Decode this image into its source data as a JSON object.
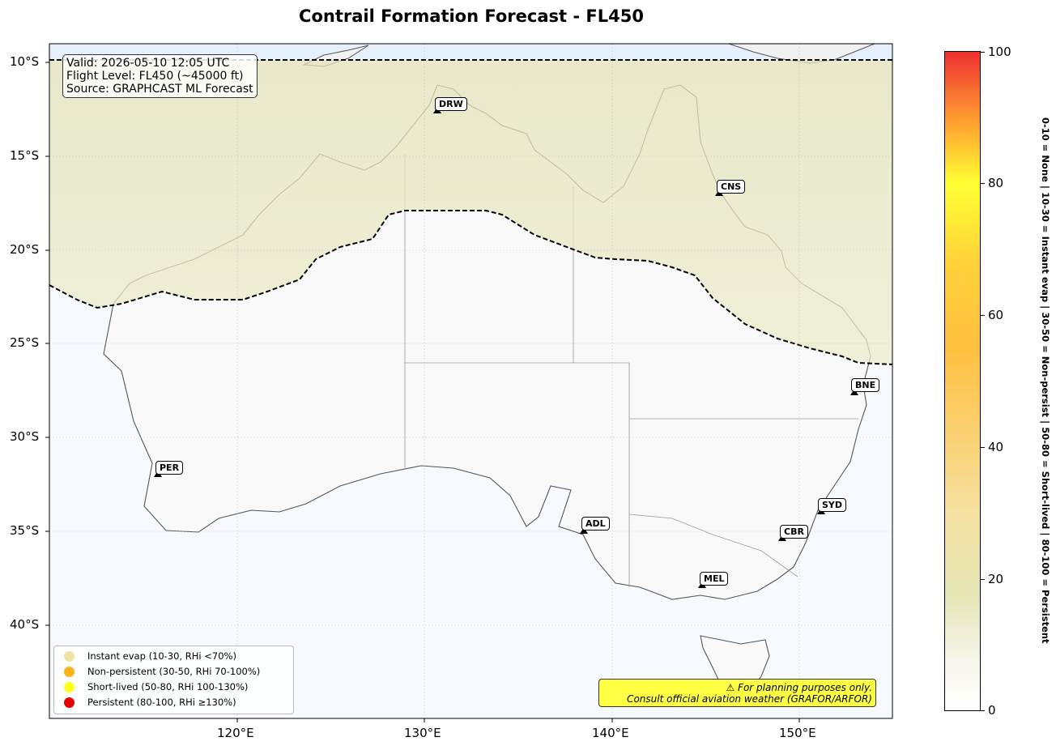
{
  "title": "Contrail Formation Forecast - FL450",
  "info": {
    "valid": "Valid: 2026-05-10 12:05 UTC",
    "flight_level": "Flight Level: FL450 (~45000 ft)",
    "source": "Source: GRAPHCAST ML Forecast"
  },
  "axes": {
    "lat_ticks": [
      "10°S",
      "15°S",
      "20°S",
      "25°S",
      "30°S",
      "35°S",
      "40°S"
    ],
    "lon_ticks": [
      "120°E",
      "130°E",
      "140°E",
      "150°E"
    ],
    "lat_range": [
      -45,
      -9
    ],
    "lon_range": [
      110,
      155
    ]
  },
  "cities": [
    {
      "code": "DRW",
      "lon": 130.8,
      "lat": -12.4
    },
    {
      "code": "CNS",
      "lon": 145.8,
      "lat": -16.9
    },
    {
      "code": "BNE",
      "lon": 153.0,
      "lat": -27.5
    },
    {
      "code": "PER",
      "lon": 115.9,
      "lat": -31.9
    },
    {
      "code": "ADL",
      "lon": 138.6,
      "lat": -34.9
    },
    {
      "code": "SYD",
      "lon": 151.2,
      "lat": -33.9
    },
    {
      "code": "CBR",
      "lon": 149.1,
      "lat": -35.3
    },
    {
      "code": "MEL",
      "lon": 144.9,
      "lat": -37.8
    }
  ],
  "legend": [
    {
      "label": "Instant evap (10-30, RHi <70%)",
      "color": "#f0e2a0"
    },
    {
      "label": "Non-persistent (30-50, RHi 70-100%)",
      "color": "#ffb31a"
    },
    {
      "label": "Short-lived (50-80, RHi 100-130%)",
      "color": "#ffff1a"
    },
    {
      "label": "Persistent (80-100, RHi ≥130%)",
      "color": "#e60000"
    }
  ],
  "warning": {
    "line1": "⚠ For planning purposes only.",
    "line2": "Consult official aviation weather (GRAFOR/ARFOR)"
  },
  "colorbar": {
    "ticks": [
      "0",
      "20",
      "40",
      "60",
      "80",
      "100"
    ],
    "label": "0-10 = None  |  10-30 = Instant evap  |  30-50 = Non-persist  |  50-80 = Short-lived  |  80-100 = Persistent"
  },
  "colors": {
    "zone_fill": "#e6e6bf",
    "ocean": "#f5f9ff",
    "land": "#fafafa"
  }
}
